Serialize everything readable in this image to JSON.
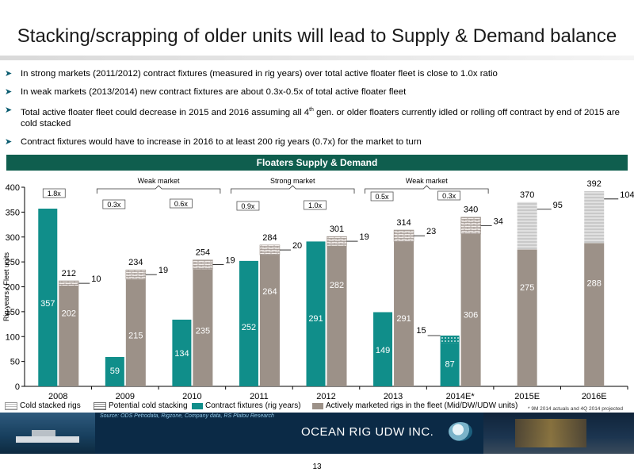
{
  "slide": {
    "title": "Stacking/scrapping of older units will lead to Supply & Demand balance",
    "bullets": [
      {
        "text": "In strong markets (2011/2012) contract fixtures (measured in rig years) over total active floater fleet is close to 1.0x ratio"
      },
      {
        "text": "In weak markets (2013/2014) new contract fixtures are about 0.3x-0.5x of total active floater fleet"
      },
      {
        "pre": "Total active floater fleet could decrease in 2015 and 2016  assuming all 4",
        "sup": "th",
        "post": " gen. or older floaters currently idled or rolling off contract by end of 2015 are cold stacked"
      },
      {
        "text": "Contract fixtures would have to increase in 2016 to at least 200 rig years (0.7x) for the market to turn"
      }
    ],
    "banner": "Floaters Supply & Demand",
    "page_number": "13"
  },
  "chart_data": {
    "type": "bar",
    "title": "Floaters Supply & Demand",
    "ylabel": "Rig years / Fleet units",
    "ylim": [
      0,
      400
    ],
    "yticks": [
      0,
      50,
      100,
      150,
      200,
      250,
      300,
      350,
      400
    ],
    "categories": [
      "2008",
      "2009",
      "2010",
      "2011",
      "2012",
      "2013",
      "2014E*",
      "2015E",
      "2016E"
    ],
    "series": [
      {
        "name": "Contract fixtures (rig years)",
        "color": "#108e8a",
        "values": [
          357,
          59,
          134,
          252,
          291,
          149,
          87,
          null,
          null
        ],
        "labels": [
          "357",
          "59",
          "134",
          "252",
          "291",
          "149",
          "87",
          "",
          ""
        ]
      },
      {
        "name": "Actively marketed rigs in the fleet (Mid/DW/UDW units)",
        "color": "#9c9188",
        "values": [
          202,
          215,
          235,
          264,
          282,
          291,
          306,
          275,
          288
        ],
        "labels": [
          "202",
          "215",
          "235",
          "264",
          "282",
          "291",
          "306",
          "275",
          "288"
        ]
      },
      {
        "name": "Potential cold stacking",
        "values": [
          10,
          19,
          19,
          20,
          19,
          23,
          34,
          null,
          null
        ],
        "labels": [
          "10",
          "19",
          "19",
          "20",
          "19",
          "23",
          "34",
          "",
          ""
        ]
      },
      {
        "name": "Cold stacked rigs",
        "values": [
          null,
          null,
          null,
          null,
          null,
          null,
          null,
          95,
          104
        ],
        "labels": [
          "",
          "",
          "",
          "",
          "",
          "",
          "",
          "95",
          "104"
        ]
      }
    ],
    "totals": [
      "212",
      "234",
      "254",
      "284",
      "301",
      "314",
      "340",
      "370",
      "392"
    ],
    "extra_2014": {
      "value": 15,
      "label": "15"
    },
    "ratio_labels": [
      {
        "text": "1.8x",
        "category": "2008"
      },
      {
        "text": "0.3x",
        "category": "2009"
      },
      {
        "text": "0.6x",
        "category": "2010"
      },
      {
        "text": "0.9x",
        "category": "2011"
      },
      {
        "text": "1.0x",
        "category": "2012"
      },
      {
        "text": "0.5x",
        "category": "2013"
      },
      {
        "text": "0.3x",
        "category": "2014E*"
      }
    ],
    "market_labels": [
      {
        "text": "Weak market",
        "from": "2009",
        "to": "2010"
      },
      {
        "text": "Strong market",
        "from": "2011",
        "to": "2012"
      },
      {
        "text": "Weak market",
        "from": "2013",
        "to": "2014E*"
      }
    ],
    "legend": [
      "Cold stacked rigs",
      "Potential cold stacking",
      "Contract fixtures (rig years)",
      "Actively marketed rigs in the fleet (Mid/DW/UDW units)"
    ],
    "legend_placement": "bottom",
    "footnote": "* 9M 2014 actuals and 4Q 2014 projected",
    "grid": false
  },
  "footer": {
    "source": "Source: ODS Petrodata, Rigzone, Company data, RS Platou Research",
    "company": "OCEAN RIG UDW INC."
  }
}
